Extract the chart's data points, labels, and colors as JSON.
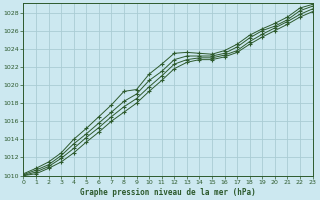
{
  "title": "Graphe pression niveau de la mer (hPa)",
  "background_color": "#cce8f0",
  "grid_color": "#aaccd4",
  "line_color": "#2d5a2d",
  "marker_color": "#2d5a2d",
  "xlim": [
    0,
    23
  ],
  "ylim": [
    1010,
    1029
  ],
  "xticks": [
    0,
    1,
    2,
    3,
    4,
    5,
    6,
    7,
    8,
    9,
    10,
    11,
    12,
    13,
    14,
    15,
    16,
    17,
    18,
    19,
    20,
    21,
    22,
    23
  ],
  "yticks": [
    1010,
    1012,
    1014,
    1016,
    1018,
    1020,
    1022,
    1024,
    1026,
    1028
  ],
  "series": [
    [
      1010.2,
      1010.8,
      1011.5,
      1012.5,
      1014.0,
      1015.2,
      1016.5,
      1017.8,
      1019.3,
      1019.5,
      1021.2,
      1022.3,
      1023.5,
      1023.6,
      1023.5,
      1023.4,
      1023.8,
      1024.5,
      1025.5,
      1026.2,
      1026.8,
      1027.5,
      1028.5,
      1028.9
    ],
    [
      1010.1,
      1010.6,
      1011.2,
      1012.2,
      1013.5,
      1014.6,
      1015.8,
      1017.0,
      1018.2,
      1019.0,
      1020.5,
      1021.5,
      1022.8,
      1023.2,
      1023.2,
      1023.2,
      1023.5,
      1024.2,
      1025.2,
      1026.0,
      1026.5,
      1027.2,
      1028.2,
      1028.7
    ],
    [
      1010.0,
      1010.4,
      1011.0,
      1011.9,
      1013.0,
      1014.2,
      1015.3,
      1016.5,
      1017.6,
      1018.5,
      1019.8,
      1021.0,
      1022.3,
      1022.8,
      1023.0,
      1023.0,
      1023.3,
      1023.8,
      1024.8,
      1025.6,
      1026.3,
      1027.0,
      1027.8,
      1028.4
    ],
    [
      1010.0,
      1010.2,
      1010.8,
      1011.5,
      1012.5,
      1013.7,
      1014.8,
      1016.0,
      1017.0,
      1018.0,
      1019.3,
      1020.5,
      1021.8,
      1022.5,
      1022.8,
      1022.8,
      1023.1,
      1023.6,
      1024.5,
      1025.3,
      1026.0,
      1026.7,
      1027.5,
      1028.1
    ]
  ]
}
